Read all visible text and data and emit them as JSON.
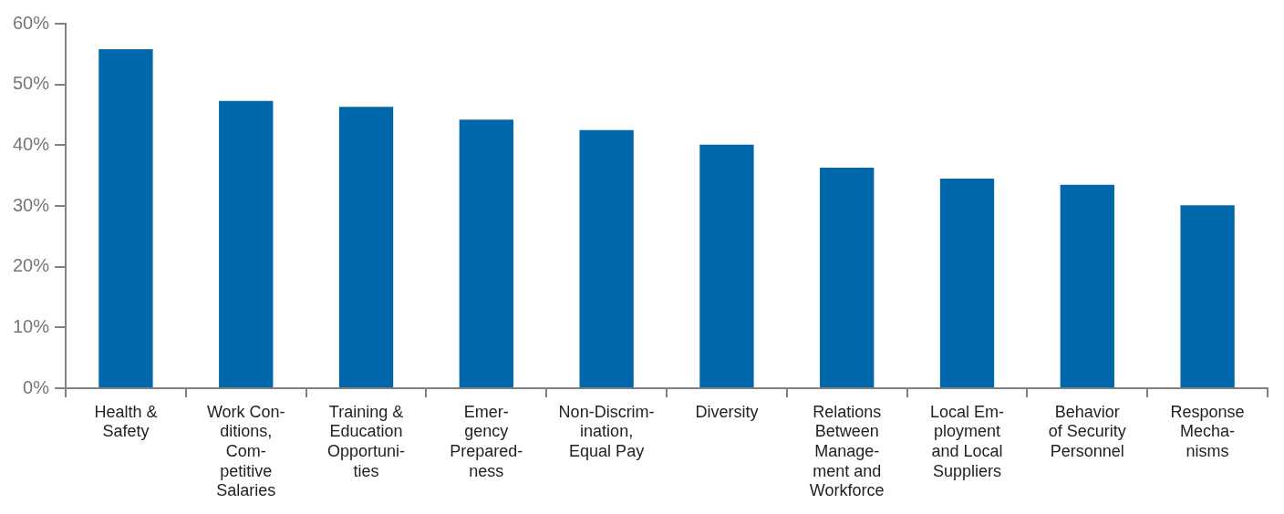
{
  "chart_data": {
    "type": "bar",
    "categories": [
      "Health &\nSafety",
      "Work Con-\nditions,\nCom-\npetitive\nSalaries",
      "Training &\nEducation\nOpportuni-\nties",
      "Emer-\ngency\nPrepared-\nness",
      "Non-Discrim-\nination,\nEqual Pay",
      "Diversity",
      "Relations\nBetween\nManage-\nment and\nWorkforce",
      "Local Em-\nployment\nand Local\nSuppliers",
      "Behavior\nof Security\nPersonnel",
      "Response\nMecha-\nnisms"
    ],
    "values": [
      55.8,
      47.3,
      46.3,
      44.2,
      42.5,
      40.1,
      36.3,
      34.5,
      33.5,
      30.1
    ],
    "color": "#0068aa",
    "ylim": [
      0,
      60
    ],
    "yticks": [
      {
        "value": 0,
        "label": "0%"
      },
      {
        "value": 10,
        "label": "10%"
      },
      {
        "value": 20,
        "label": "20%"
      },
      {
        "value": 30,
        "label": "30%"
      },
      {
        "value": 40,
        "label": "40%"
      },
      {
        "value": 50,
        "label": "50%"
      },
      {
        "value": 60,
        "label": "60%"
      }
    ],
    "grid": false,
    "legend": false
  }
}
